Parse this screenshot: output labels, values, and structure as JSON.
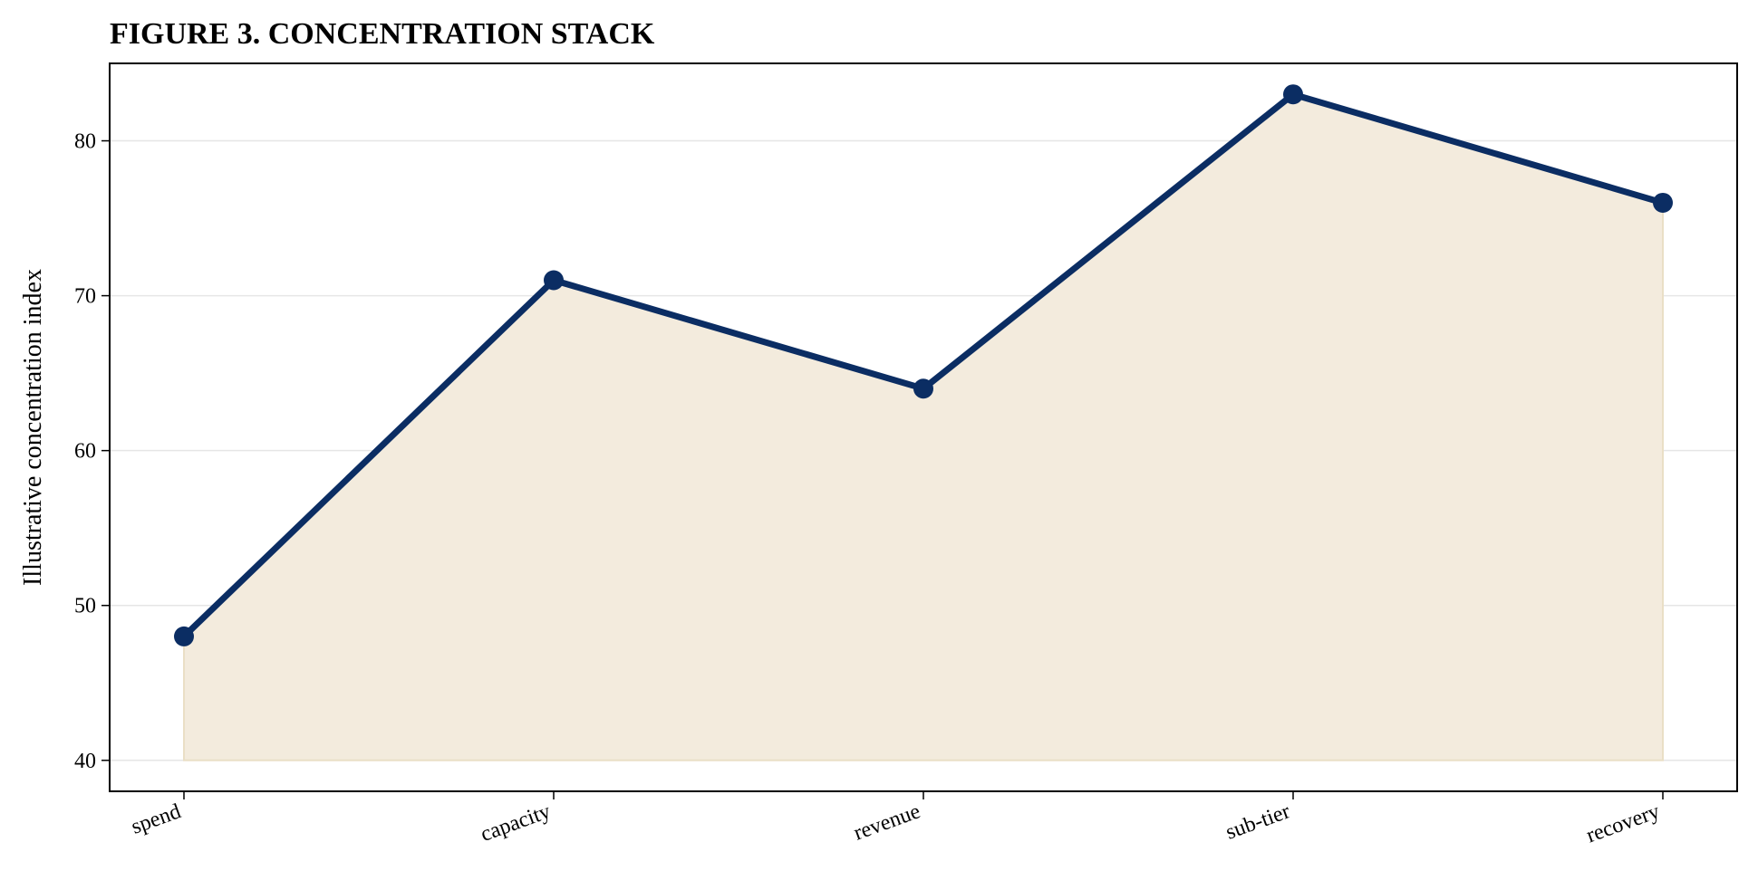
{
  "chart_data": {
    "type": "area",
    "title": "FIGURE 3. CONCENTRATION STACK",
    "xlabel": "",
    "ylabel": "Illustrative concentration index",
    "categories": [
      "spend",
      "capacity",
      "revenue",
      "sub-tier",
      "recovery"
    ],
    "series": [
      {
        "values": [
          48,
          71,
          64,
          83,
          76
        ]
      }
    ],
    "fill_baseline": 40,
    "ylim": [
      38,
      85
    ],
    "yticks": [
      40,
      50,
      60,
      70,
      80
    ],
    "grid": "horizontal",
    "legend": "none",
    "colors": {
      "line": "#0b2d63",
      "fill": "#f3ebdd",
      "fill_edge": "#eadfc6",
      "grid": "#e6e6e6"
    }
  }
}
